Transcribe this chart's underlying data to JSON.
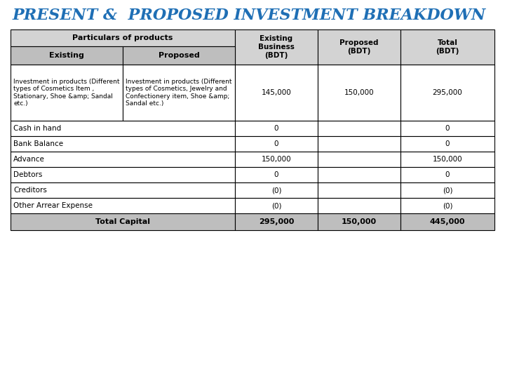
{
  "title": "PRESENT &  PROPOSED INVESTMENT BREAKDOWN",
  "title_color": "#1F6FB5",
  "title_fontsize": 16,
  "background_color": "#FFFFFF",
  "gray_light": "#D3D3D3",
  "gray_dark": "#BEBEBE",
  "white": "#FFFFFF",
  "figure_width": 7.2,
  "figure_height": 5.4,
  "dpi": 100,
  "invest_existing": "Investment in products (Different\ntypes of Cosmetics Item ,\nStationary, Shoe &amp; Sandal\netc.)",
  "invest_proposed": "Investment in products (Different\ntypes of Cosmetics, Jewelry and\nConfectionery item, Shoe &amp;\nSandal etc.)",
  "regular_rows": [
    [
      "Cash in hand",
      "0",
      "0"
    ],
    [
      "Bank Balance",
      "0",
      "0"
    ],
    [
      "Advance",
      "150,000",
      "150,000"
    ],
    [
      "Debtors",
      "0",
      "0"
    ],
    [
      "Creditors",
      "(0)",
      "(0)"
    ],
    [
      "Other Arrear Expense",
      "(0)",
      "(0)"
    ]
  ]
}
